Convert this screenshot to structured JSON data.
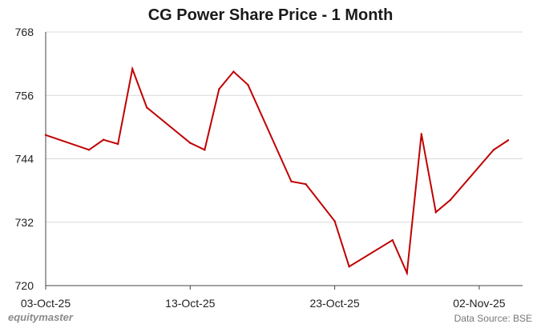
{
  "chart_data": {
    "type": "line",
    "title": "CG Power Share Price - 1 Month",
    "xlabel": "",
    "ylabel": "",
    "ylim": [
      720,
      768
    ],
    "yticks": [
      720,
      732,
      744,
      756,
      768
    ],
    "xticks": [
      {
        "date": "2025-10-03",
        "label": "03-Oct-25"
      },
      {
        "date": "2025-10-13",
        "label": "13-Oct-25"
      },
      {
        "date": "2025-10-23",
        "label": "23-Oct-25"
      },
      {
        "date": "2025-11-02",
        "label": "02-Nov-25"
      }
    ],
    "xlim": [
      "2025-10-03",
      "2025-11-05"
    ],
    "grid": true,
    "legend": "none",
    "series": [
      {
        "name": "",
        "color": "#c00000",
        "points": [
          {
            "x": "2025-10-03",
            "y": 748.5
          },
          {
            "x": "2025-10-06",
            "y": 745.7
          },
          {
            "x": "2025-10-07",
            "y": 747.6
          },
          {
            "x": "2025-10-08",
            "y": 746.8
          },
          {
            "x": "2025-10-09",
            "y": 761.0
          },
          {
            "x": "2025-10-10",
            "y": 753.7
          },
          {
            "x": "2025-10-13",
            "y": 747.0
          },
          {
            "x": "2025-10-14",
            "y": 745.7
          },
          {
            "x": "2025-10-15",
            "y": 757.2
          },
          {
            "x": "2025-10-16",
            "y": 760.5
          },
          {
            "x": "2025-10-17",
            "y": 758.0
          },
          {
            "x": "2025-10-20",
            "y": 739.7
          },
          {
            "x": "2025-10-21",
            "y": 739.2
          },
          {
            "x": "2025-10-23",
            "y": 732.2
          },
          {
            "x": "2025-10-24",
            "y": 723.6
          },
          {
            "x": "2025-10-27",
            "y": 728.6
          },
          {
            "x": "2025-10-28",
            "y": 722.4
          },
          {
            "x": "2025-10-29",
            "y": 748.7
          },
          {
            "x": "2025-10-30",
            "y": 733.9
          },
          {
            "x": "2025-10-31",
            "y": 736.2
          },
          {
            "x": "2025-11-03",
            "y": 745.7
          },
          {
            "x": "2025-11-04",
            "y": 747.5
          }
        ]
      }
    ]
  },
  "footer": {
    "brand": "equitymaster",
    "source": "Data Source: BSE"
  }
}
